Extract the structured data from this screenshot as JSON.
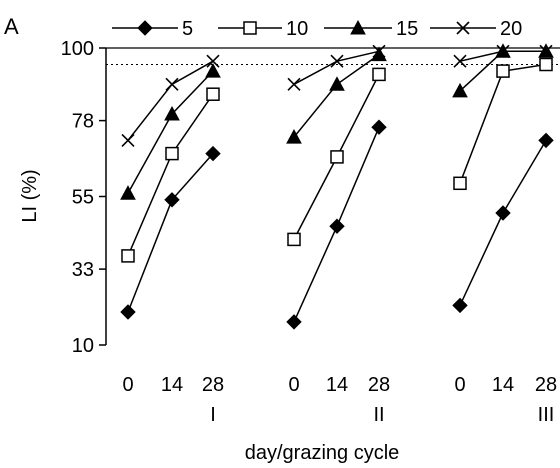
{
  "chart_data": {
    "type": "line",
    "panel_label": "A",
    "xlabel": "day/grazing cycle",
    "ylabel": "LI (%)",
    "ylim": [
      10,
      100
    ],
    "yticks": [
      10,
      33,
      55,
      78,
      100
    ],
    "reference_line": {
      "y": 95,
      "style": "dotted"
    },
    "grid": false,
    "legend_placement": "top",
    "x_tick_labels": [
      "0",
      "14",
      "28"
    ],
    "cycles": [
      "I",
      "II",
      "III"
    ],
    "series": [
      {
        "name": "5",
        "marker": "filled-diamond",
        "values": [
          [
            20,
            54,
            68
          ],
          [
            17,
            46,
            76
          ],
          [
            22,
            50,
            72
          ]
        ]
      },
      {
        "name": "10",
        "marker": "open-square",
        "values": [
          [
            37,
            68,
            86
          ],
          [
            42,
            67,
            92
          ],
          [
            59,
            93,
            95
          ]
        ]
      },
      {
        "name": "15",
        "marker": "filled-triangle",
        "values": [
          [
            56,
            80,
            93
          ],
          [
            73,
            89,
            98
          ],
          [
            87,
            99,
            99
          ]
        ]
      },
      {
        "name": "20",
        "marker": "x-cross",
        "values": [
          [
            72,
            89,
            96
          ],
          [
            89,
            96,
            99
          ],
          [
            96,
            99,
            99
          ]
        ]
      }
    ]
  }
}
